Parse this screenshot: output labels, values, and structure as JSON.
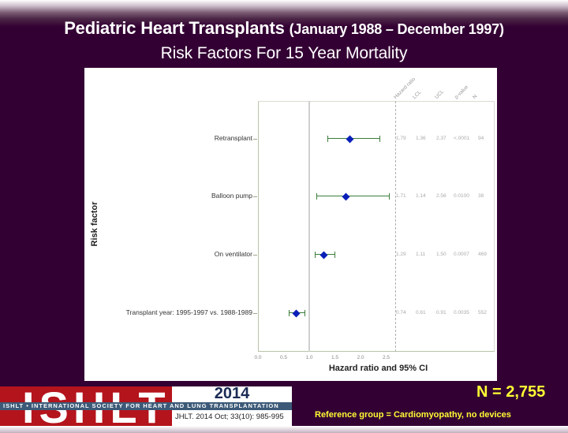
{
  "header": {
    "title_main": "Pediatric Heart Transplants",
    "title_range": "(January 1988 – December 1997)",
    "subtitle": "Risk Factors For 15 Year Mortality"
  },
  "chart_data": {
    "type": "forest",
    "title": "Risk Factors For 15 Year Mortality",
    "xlabel": "Hazard ratio and 95% CI",
    "ylabel": "Risk factor",
    "xlim": [
      0.0,
      4.6
    ],
    "xticks": [
      "0.0",
      "0.5",
      "1.0",
      "1.5",
      "2.0",
      "2.5"
    ],
    "reference_line": 1.0,
    "column_headers": [
      "Hazard ratio",
      "LCL",
      "UCL",
      "p-value",
      "N"
    ],
    "rows": [
      {
        "label": "Retransplant",
        "hr": 1.79,
        "lcl": 1.36,
        "ucl": 2.37,
        "p": "<.0001",
        "n": 94
      },
      {
        "label": "Balloon pump",
        "hr": 1.71,
        "lcl": 1.14,
        "ucl": 2.56,
        "p": "0.0100",
        "n": 38
      },
      {
        "label": "On ventilator",
        "hr": 1.29,
        "lcl": 1.11,
        "ucl": 1.5,
        "p": "0.0007",
        "n": 469
      },
      {
        "label": "Transplant year: 1995-1997 vs. 1988-1989",
        "hr": 0.74,
        "lcl": 0.61,
        "ucl": 0.91,
        "p": "0.0035",
        "n": 552
      }
    ],
    "colors": {
      "point": "#0a1fb8",
      "ci": "#3a7d3a"
    }
  },
  "table_text": {
    "rows": [
      [
        "1.79",
        "1.36",
        "2.37",
        "<.0001",
        "94"
      ],
      [
        "1.71",
        "1.14",
        "2.56",
        "0.0100",
        "38"
      ],
      [
        "1.29",
        "1.11",
        "1.50",
        "0.0007",
        "469"
      ],
      [
        "0.74",
        "0.61",
        "0.91",
        "0.0035",
        "552"
      ]
    ]
  },
  "footer": {
    "logo_letters": "ISHLT",
    "logo_band": "ISHLT • INTERNATIONAL SOCIETY FOR HEART AND LUNG TRANSPLANTATION",
    "logo_year": "2014",
    "citation": "JHLT. 2014 Oct; 33(10): 985-995",
    "n_count": "N = 2,755",
    "reference_group": "Reference group = Cardiomyopathy, no devices"
  }
}
